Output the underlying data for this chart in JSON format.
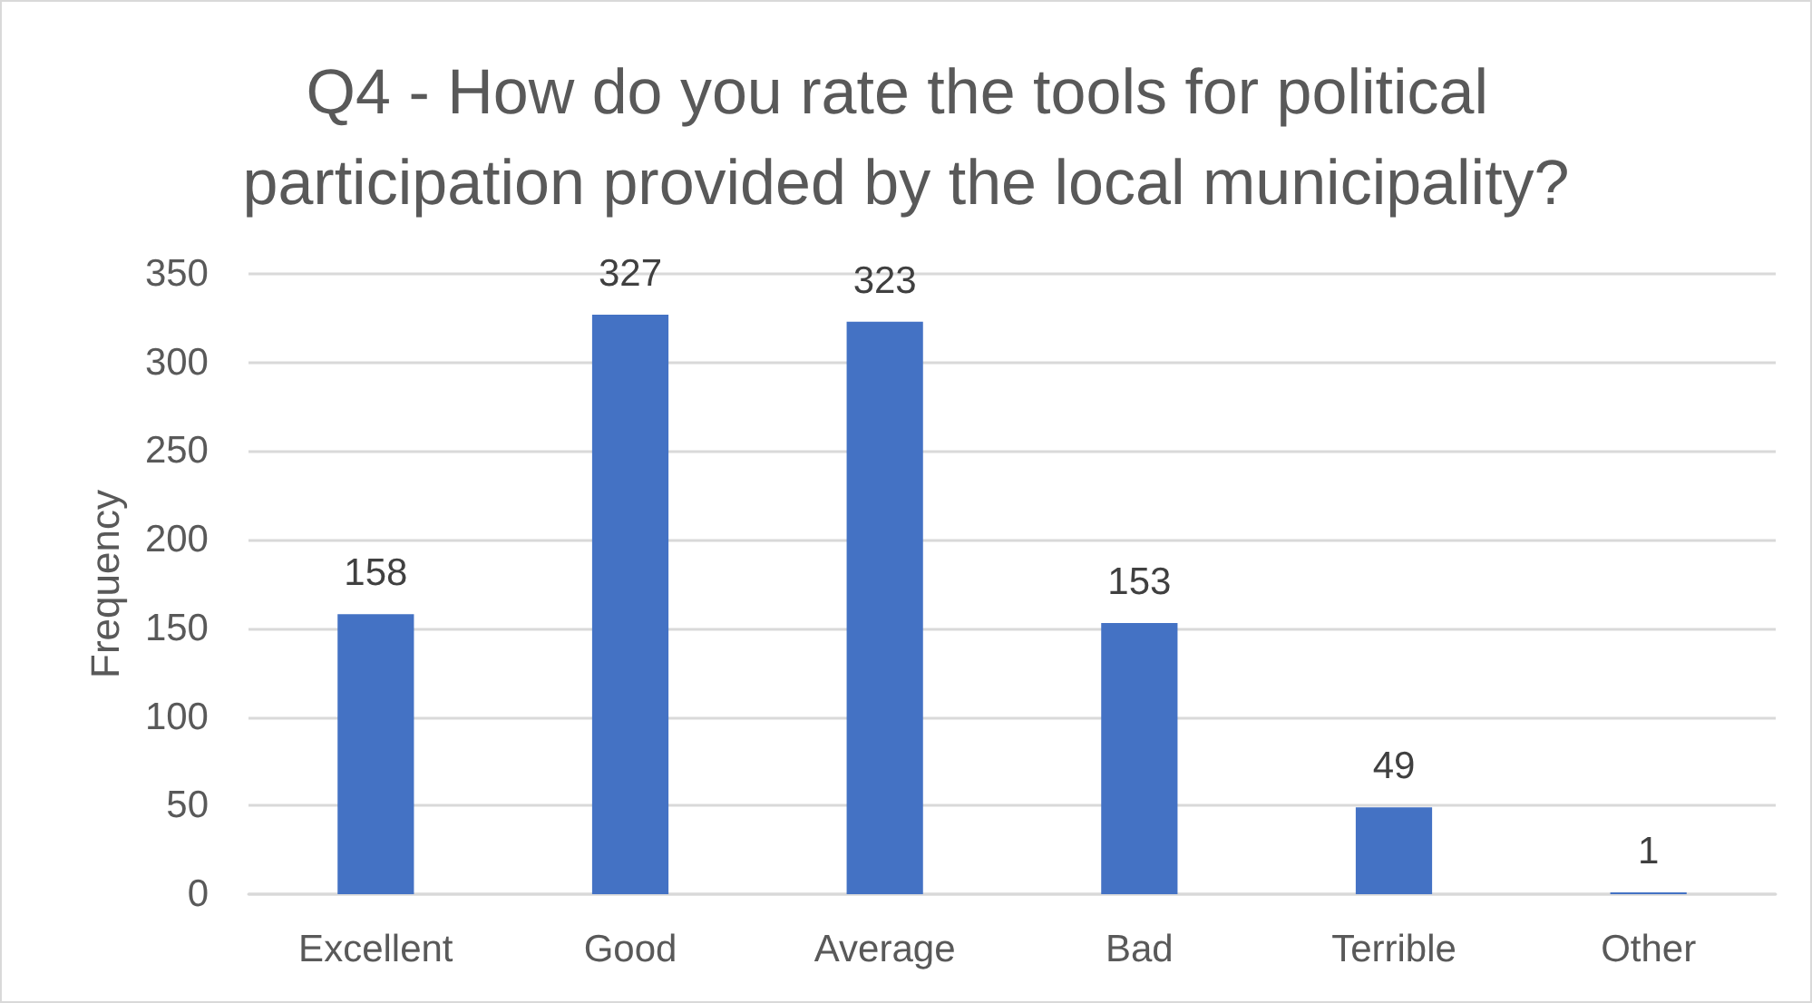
{
  "chart_data": {
    "type": "bar",
    "title": "Q4 - How do you rate the tools for political participation provided by the local municipality?",
    "ylabel": "Frequency",
    "categories": [
      "Excellent",
      "Good",
      "Average",
      "Bad",
      "Terrible",
      "Other"
    ],
    "values": [
      158,
      327,
      323,
      153,
      49,
      1
    ],
    "color": "#4472c4",
    "ylim": [
      0,
      350
    ],
    "yticks": [
      0,
      50,
      100,
      150,
      200,
      250,
      300,
      350
    ],
    "grid": "y",
    "data_labels": true
  }
}
